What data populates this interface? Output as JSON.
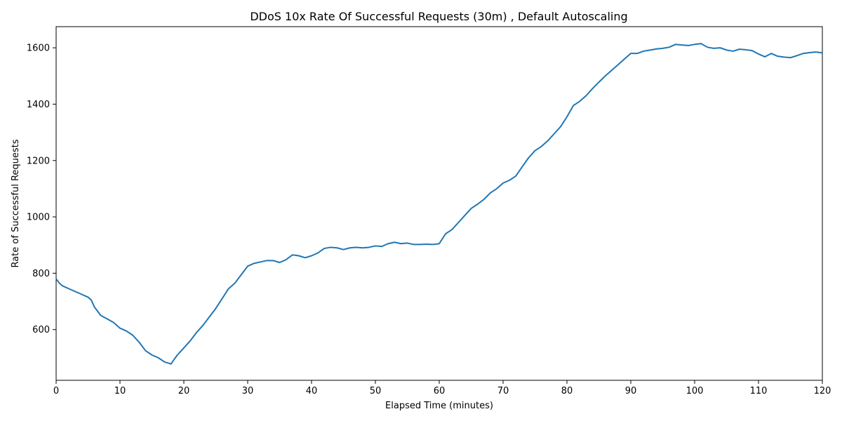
{
  "chart_data": {
    "type": "line",
    "title": "DDoS 10x Rate Of Successful Requests (30m) , Default Autoscaling",
    "xlabel": "Elapsed Time (minutes)",
    "ylabel": "Rate of Successful Requests",
    "xlim": [
      0,
      120
    ],
    "ylim": [
      420,
      1675
    ],
    "xticks": [
      0,
      10,
      20,
      30,
      40,
      50,
      60,
      70,
      80,
      90,
      100,
      110,
      120
    ],
    "yticks": [
      600,
      800,
      1000,
      1200,
      1400,
      1600
    ],
    "grid": false,
    "line_color": "#1f77b4",
    "series": [
      {
        "x": [
          0,
          0.5,
          1,
          2,
          3,
          4,
          5,
          5.5,
          6,
          7,
          8,
          9,
          10,
          11,
          12,
          13,
          14,
          15,
          16,
          17,
          18,
          18.5,
          19,
          20,
          21,
          22,
          23,
          24,
          25,
          26,
          27,
          28,
          29,
          30,
          31,
          32,
          33,
          34,
          35,
          36,
          37,
          38,
          39,
          40,
          41,
          42,
          43,
          44,
          45,
          46,
          47,
          48,
          49,
          50,
          51,
          52,
          53,
          54,
          55,
          56,
          57,
          58,
          59,
          60,
          61,
          62,
          63,
          64,
          65,
          66,
          67,
          68,
          69,
          70,
          71,
          72,
          73,
          74,
          75,
          76,
          77,
          78,
          79,
          80,
          81,
          82,
          83,
          84,
          85,
          86,
          87,
          88,
          89,
          90,
          91,
          92,
          93,
          94,
          95,
          96,
          97,
          98,
          99,
          100,
          101,
          102,
          103,
          104,
          105,
          106,
          107,
          108,
          109,
          110,
          111,
          112,
          113,
          114,
          115,
          116,
          117,
          118,
          119,
          120
        ],
        "y": [
          780,
          765,
          755,
          745,
          735,
          725,
          715,
          705,
          680,
          650,
          638,
          625,
          605,
          595,
          580,
          555,
          525,
          510,
          500,
          485,
          478,
          495,
          510,
          535,
          560,
          590,
          615,
          645,
          675,
          710,
          745,
          765,
          795,
          825,
          835,
          840,
          845,
          845,
          838,
          848,
          865,
          862,
          855,
          862,
          872,
          888,
          892,
          890,
          884,
          890,
          892,
          890,
          892,
          897,
          895,
          905,
          910,
          905,
          907,
          902,
          902,
          903,
          902,
          905,
          940,
          955,
          980,
          1005,
          1030,
          1045,
          1062,
          1085,
          1100,
          1120,
          1130,
          1145,
          1178,
          1210,
          1235,
          1250,
          1270,
          1295,
          1320,
          1355,
          1395,
          1410,
          1430,
          1455,
          1478,
          1500,
          1520,
          1540,
          1560,
          1580,
          1580,
          1588,
          1592,
          1596,
          1598,
          1602,
          1612,
          1610,
          1608,
          1612,
          1615,
          1602,
          1598,
          1600,
          1592,
          1588,
          1595,
          1593,
          1590,
          1578,
          1568,
          1580,
          1570,
          1567,
          1565,
          1572,
          1580,
          1583,
          1585,
          1582
        ]
      }
    ]
  }
}
